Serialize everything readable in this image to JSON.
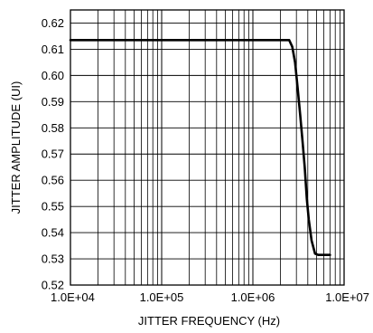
{
  "chart_data": {
    "type": "line",
    "title": "",
    "xlabel": "JITTER FREQUENCY (Hz)",
    "ylabel": "JITTER AMPLITUDE (UI)",
    "x_scale": "log",
    "xlim": [
      10000,
      10000000
    ],
    "ylim": [
      0.52,
      0.625
    ],
    "grid": true,
    "x_ticks": [
      10000,
      100000,
      1000000,
      10000000
    ],
    "x_tick_labels": [
      "1.0E+04",
      "1.0E+05",
      "1.0E+06",
      "1.0E+07"
    ],
    "y_ticks": [
      0.52,
      0.53,
      0.54,
      0.55,
      0.56,
      0.57,
      0.58,
      0.59,
      0.6,
      0.61,
      0.62
    ],
    "y_tick_labels": [
      "0.52",
      "0.53",
      "0.54",
      "0.55",
      "0.56",
      "0.57",
      "0.58",
      "0.59",
      "0.60",
      "0.61",
      "0.62"
    ],
    "series": [
      {
        "x": [
          10000,
          100000,
          1000000,
          2200000,
          2500000,
          2700000,
          2900000,
          3100000,
          3300000,
          3500000,
          3700000,
          3900000,
          4100000,
          4400000,
          4800000,
          5200000,
          7000000
        ],
        "y": [
          0.6135,
          0.6135,
          0.6135,
          0.6135,
          0.6135,
          0.611,
          0.605,
          0.595,
          0.585,
          0.575,
          0.565,
          0.553,
          0.545,
          0.537,
          0.532,
          0.5315,
          0.5315
        ]
      }
    ]
  }
}
